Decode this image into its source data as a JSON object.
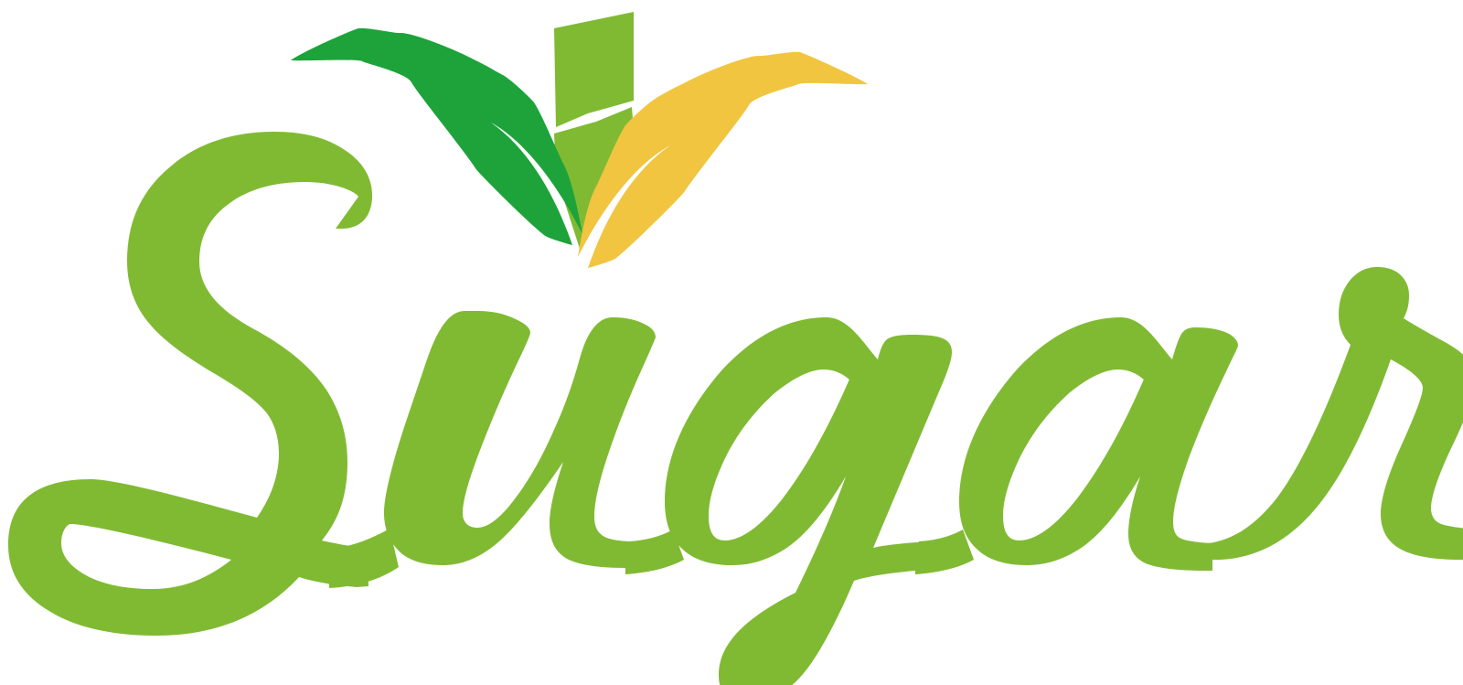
{
  "logo": {
    "wordmark": "Sugar",
    "colors": {
      "primary_green": "#80BA33",
      "dark_green": "#1DA33A",
      "yellow": "#F1C540",
      "background": "#FFFFFF"
    },
    "icons": [
      "sugarcane-leaves-icon"
    ]
  }
}
